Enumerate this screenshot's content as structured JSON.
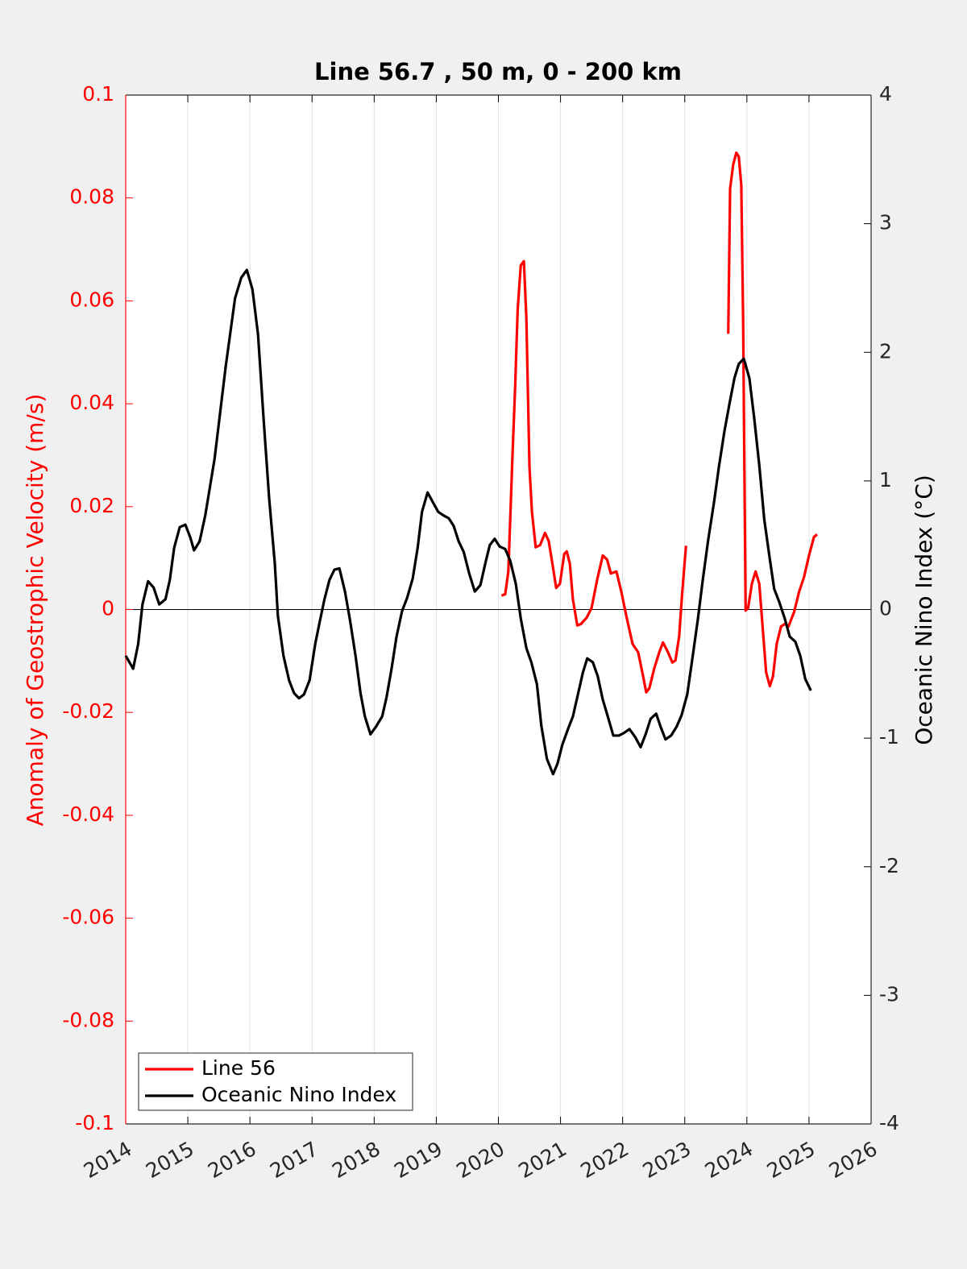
{
  "chart_data": {
    "type": "line",
    "title": "Line 56.7 , 50 m, 0 - 200 km",
    "ylabel": "Anomaly of Geostrophic Velocity (m/s)",
    "y2label": "Oceanic Nino Index (°C)",
    "xlim": [
      2014,
      2026
    ],
    "xticks": [
      2014,
      2015,
      2016,
      2017,
      2018,
      2019,
      2020,
      2021,
      2022,
      2023,
      2024,
      2025,
      2026
    ],
    "ylim": [
      -0.1,
      0.1
    ],
    "yticks": [
      -0.1,
      -0.08,
      -0.06,
      -0.04,
      -0.02,
      0,
      0.02,
      0.04,
      0.06,
      0.08,
      0.1
    ],
    "y2lim": [
      -4,
      4
    ],
    "y2ticks": [
      -4,
      -3,
      -2,
      -1,
      0,
      1,
      2,
      3,
      4
    ],
    "xgrid": true,
    "legend": "southwest",
    "series": [
      {
        "name": "Line 56",
        "color": "#ff0000",
        "axis": "y",
        "x": [
          2020.05,
          2020.11,
          2020.16,
          2020.23,
          2020.27,
          2020.31,
          2020.36,
          2020.41,
          2020.45,
          2020.5,
          2020.54,
          2020.6,
          2020.67,
          2020.75,
          2020.81,
          2020.88,
          2020.93,
          2020.99,
          2021.06,
          2021.1,
          2021.15,
          2021.2,
          2021.27,
          2021.33,
          2021.42,
          2021.5,
          2021.59,
          2021.68,
          2021.75,
          2021.81,
          2021.9,
          2021.98,
          2022.06,
          2022.16,
          2022.25,
          2022.33,
          2022.38,
          2022.43,
          2022.51,
          2022.59,
          2022.65,
          2022.73,
          2022.8,
          2022.85,
          2022.91,
          2022.96,
          2023.02,
          null,
          2023.7,
          2023.73,
          2023.78,
          2023.83,
          2023.87,
          2023.91,
          2023.94,
          2023.98,
          2024.02,
          2024.08,
          2024.14,
          2024.2,
          2024.26,
          2024.31,
          2024.37,
          2024.42,
          2024.48,
          2024.55,
          2024.61,
          2024.67,
          2024.76,
          2024.84,
          2024.92,
          2025.0,
          2025.08,
          2025.13
        ],
        "values": [
          0.0027,
          0.003,
          0.0074,
          0.031,
          0.0434,
          0.0583,
          0.0669,
          0.0677,
          0.0567,
          0.0277,
          0.019,
          0.0121,
          0.0125,
          0.0149,
          0.0133,
          0.0081,
          0.0042,
          0.005,
          0.0108,
          0.0113,
          0.0089,
          0.0019,
          -0.0031,
          -0.0028,
          -0.0016,
          0.0003,
          0.0058,
          0.0105,
          0.0097,
          0.007,
          0.0074,
          0.0034,
          -0.0013,
          -0.0067,
          -0.0083,
          -0.013,
          -0.0161,
          -0.0153,
          -0.0114,
          -0.0083,
          -0.0064,
          -0.0083,
          -0.0103,
          -0.0099,
          -0.0052,
          0.0034,
          0.0124,
          null,
          0.0536,
          0.0818,
          0.0865,
          0.0888,
          0.088,
          0.0825,
          0.0559,
          -0.0002,
          0.0003,
          0.005,
          0.0074,
          0.005,
          -0.0044,
          -0.0122,
          -0.0149,
          -0.013,
          -0.0067,
          -0.0033,
          -0.0028,
          -0.0033,
          -0.0005,
          0.0034,
          0.0063,
          0.0105,
          0.0141,
          0.0146
        ]
      },
      {
        "name": "Oceanic Nino Index",
        "color": "#000000",
        "axis": "y2",
        "x": [
          2014.0,
          2014.12,
          2014.2,
          2014.27,
          2014.36,
          2014.45,
          2014.54,
          2014.64,
          2014.71,
          2014.78,
          2014.87,
          2014.96,
          2015.04,
          2015.1,
          2015.19,
          2015.28,
          2015.43,
          2015.61,
          2015.76,
          2015.86,
          2015.95,
          2016.04,
          2016.13,
          2016.22,
          2016.31,
          2016.4,
          2016.45,
          2016.54,
          2016.63,
          2016.71,
          2016.79,
          2016.87,
          2016.96,
          2017.05,
          2017.13,
          2017.2,
          2017.28,
          2017.36,
          2017.44,
          2017.53,
          2017.61,
          2017.7,
          2017.78,
          2017.85,
          2017.94,
          2018.03,
          2018.13,
          2018.2,
          2018.28,
          2018.36,
          2018.45,
          2018.53,
          2018.62,
          2018.7,
          2018.77,
          2018.86,
          2018.95,
          2019.03,
          2019.12,
          2019.2,
          2019.28,
          2019.36,
          2019.44,
          2019.53,
          2019.62,
          2019.71,
          2019.79,
          2019.86,
          2019.94,
          2020.02,
          2020.11,
          2020.19,
          2020.28,
          2020.36,
          2020.45,
          2020.53,
          2020.62,
          2020.69,
          2020.78,
          2020.88,
          2020.95,
          2021.03,
          2021.12,
          2021.2,
          2021.28,
          2021.36,
          2021.43,
          2021.52,
          2021.6,
          2021.68,
          2021.76,
          2021.85,
          2021.94,
          2022.02,
          2022.11,
          2022.2,
          2022.29,
          2022.37,
          2022.45,
          2022.54,
          2022.61,
          2022.69,
          2022.78,
          2022.87,
          2022.95,
          2023.04,
          2023.12,
          2023.21,
          2023.29,
          2023.38,
          2023.47,
          2023.55,
          2023.64,
          2023.72,
          2023.8,
          2023.87,
          2023.95,
          2024.04,
          2024.12,
          2024.2,
          2024.28,
          2024.37,
          2024.44,
          2024.52,
          2024.61,
          2024.69,
          2024.78,
          2024.86,
          2024.94,
          2025.03
        ],
        "values": [
          -0.36,
          -0.46,
          -0.27,
          0.04,
          0.22,
          0.17,
          0.04,
          0.08,
          0.23,
          0.48,
          0.64,
          0.66,
          0.56,
          0.46,
          0.53,
          0.73,
          1.17,
          1.89,
          2.42,
          2.58,
          2.64,
          2.49,
          2.14,
          1.48,
          0.86,
          0.36,
          -0.05,
          -0.36,
          -0.55,
          -0.65,
          -0.69,
          -0.66,
          -0.55,
          -0.27,
          -0.08,
          0.08,
          0.23,
          0.31,
          0.32,
          0.14,
          -0.08,
          -0.36,
          -0.65,
          -0.83,
          -0.97,
          -0.91,
          -0.83,
          -0.68,
          -0.46,
          -0.21,
          -0.01,
          0.09,
          0.24,
          0.48,
          0.76,
          0.91,
          0.83,
          0.76,
          0.73,
          0.71,
          0.65,
          0.53,
          0.45,
          0.28,
          0.14,
          0.19,
          0.36,
          0.5,
          0.55,
          0.49,
          0.47,
          0.38,
          0.2,
          -0.07,
          -0.3,
          -0.41,
          -0.58,
          -0.9,
          -1.16,
          -1.28,
          -1.2,
          -1.05,
          -0.93,
          -0.83,
          -0.66,
          -0.49,
          -0.38,
          -0.41,
          -0.52,
          -0.7,
          -0.83,
          -0.98,
          -0.98,
          -0.96,
          -0.93,
          -0.99,
          -1.07,
          -0.97,
          -0.85,
          -0.81,
          -0.91,
          -1.01,
          -0.98,
          -0.91,
          -0.82,
          -0.66,
          -0.39,
          -0.08,
          0.23,
          0.55,
          0.83,
          1.11,
          1.39,
          1.6,
          1.8,
          1.91,
          1.95,
          1.8,
          1.48,
          1.12,
          0.7,
          0.39,
          0.16,
          0.06,
          -0.07,
          -0.21,
          -0.25,
          -0.36,
          -0.54,
          -0.63
        ]
      }
    ]
  }
}
